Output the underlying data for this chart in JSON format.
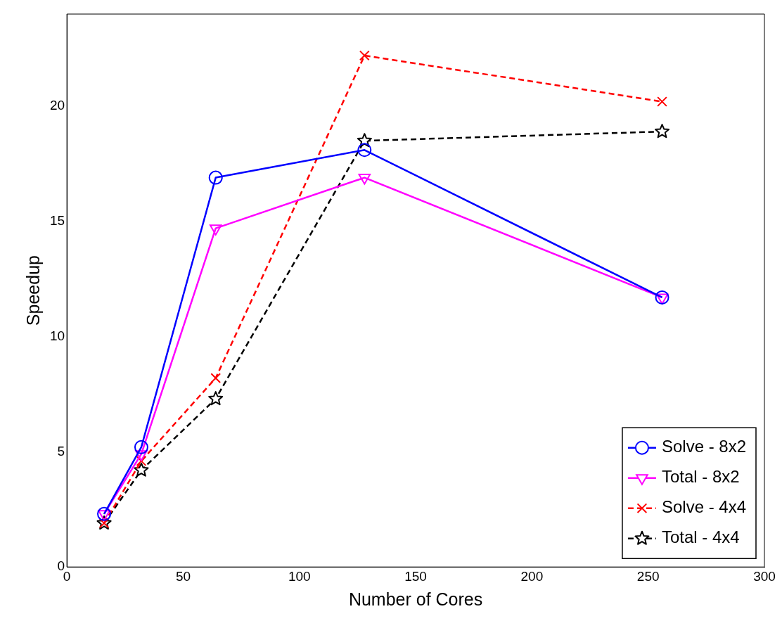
{
  "chart_data": {
    "type": "line",
    "xlabel": "Number of Cores",
    "ylabel": "Speedup",
    "x": [
      16,
      32,
      64,
      128,
      256
    ],
    "series": [
      {
        "name": "Solve - 8x2",
        "color": "#0000ff",
        "values": [
          2.3,
          5.2,
          16.9,
          18.1,
          11.7
        ],
        "marker": "circle",
        "line_style": "solid"
      },
      {
        "name": "Total - 8x2",
        "color": "#ff00ff",
        "values": [
          2.3,
          4.9,
          14.7,
          16.9,
          11.7
        ],
        "marker": "triangle",
        "line_style": "solid"
      },
      {
        "name": "Solve - 4x4",
        "color": "#ff0000",
        "values": [
          1.9,
          4.6,
          8.2,
          22.2,
          20.2
        ],
        "marker": "cross",
        "line_style": "dashed"
      },
      {
        "name": "Total - 4x4",
        "color": "#000000",
        "values": [
          1.9,
          4.2,
          7.3,
          18.5,
          18.9
        ],
        "marker": "star",
        "line_style": "dashed"
      }
    ],
    "xlim": [
      0,
      300
    ],
    "xticks": [
      0,
      50,
      100,
      150,
      200,
      250,
      300
    ],
    "ylim": [
      0,
      24
    ],
    "yticks": [
      0,
      5,
      10,
      15,
      20
    ],
    "grid": false,
    "legend": "bottom right"
  }
}
